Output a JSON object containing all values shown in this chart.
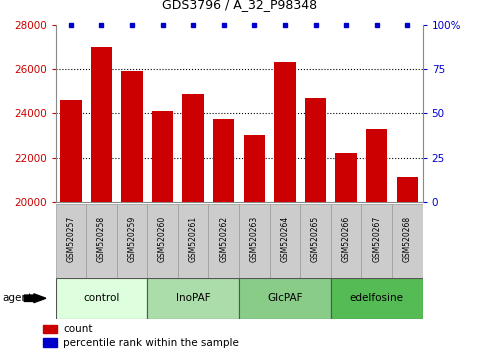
{
  "title": "GDS3796 / A_32_P98348",
  "samples": [
    "GSM520257",
    "GSM520258",
    "GSM520259",
    "GSM520260",
    "GSM520261",
    "GSM520262",
    "GSM520263",
    "GSM520264",
    "GSM520265",
    "GSM520266",
    "GSM520267",
    "GSM520268"
  ],
  "counts": [
    24600,
    27000,
    25900,
    24100,
    24850,
    23750,
    23000,
    26300,
    24700,
    22200,
    23300,
    21100
  ],
  "bar_color": "#cc0000",
  "dot_color": "#0000cc",
  "ylim_left": [
    20000,
    28000
  ],
  "ylim_right": [
    0,
    100
  ],
  "yticks_left": [
    20000,
    22000,
    24000,
    26000,
    28000
  ],
  "yticks_right": [
    0,
    25,
    50,
    75,
    100
  ],
  "ytick_right_labels": [
    "0",
    "25",
    "50",
    "75",
    "100%"
  ],
  "grid_lines": [
    22000,
    24000,
    26000
  ],
  "groups": [
    {
      "label": "control",
      "start": 0,
      "end": 3,
      "color": "#ddffdd"
    },
    {
      "label": "InoPAF",
      "start": 3,
      "end": 6,
      "color": "#aaddaa"
    },
    {
      "label": "GlcPAF",
      "start": 6,
      "end": 9,
      "color": "#88cc88"
    },
    {
      "label": "edelfosine",
      "start": 9,
      "end": 12,
      "color": "#55bb55"
    }
  ],
  "background_color": "#ffffff",
  "tick_bg_color": "#cccccc",
  "agent_label": "agent",
  "legend_count_label": "count",
  "legend_pct_label": "percentile rank within the sample"
}
